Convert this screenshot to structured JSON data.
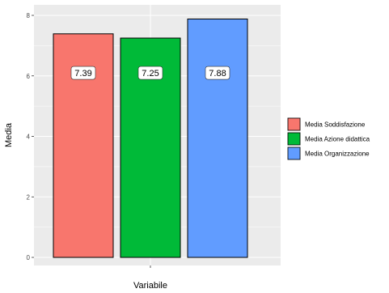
{
  "chart_data": {
    "type": "bar",
    "categories": [
      "Media Soddisfazione",
      "Media Azione didattica",
      "Media Organizzazione"
    ],
    "values": [
      7.39,
      7.25,
      7.88
    ],
    "data_labels": [
      "7.39",
      "7.25",
      "7.88"
    ],
    "colors": [
      "#F8766D",
      "#00BA38",
      "#619CFF"
    ],
    "xlabel": "Variabile",
    "ylabel": "Media",
    "ylim": [
      0,
      8
    ],
    "yticks": [
      0,
      2,
      4,
      6,
      8
    ],
    "ytick_labels": [
      "0",
      "2",
      "4",
      "6",
      "8"
    ],
    "grid": true,
    "legend_position": "right",
    "legend_entries": [
      "Media Soddisfazione",
      "Media Azione didattica",
      "Media Organizzazione"
    ],
    "panel_color": "#EBEBEB",
    "data_label_value": 6.1
  }
}
